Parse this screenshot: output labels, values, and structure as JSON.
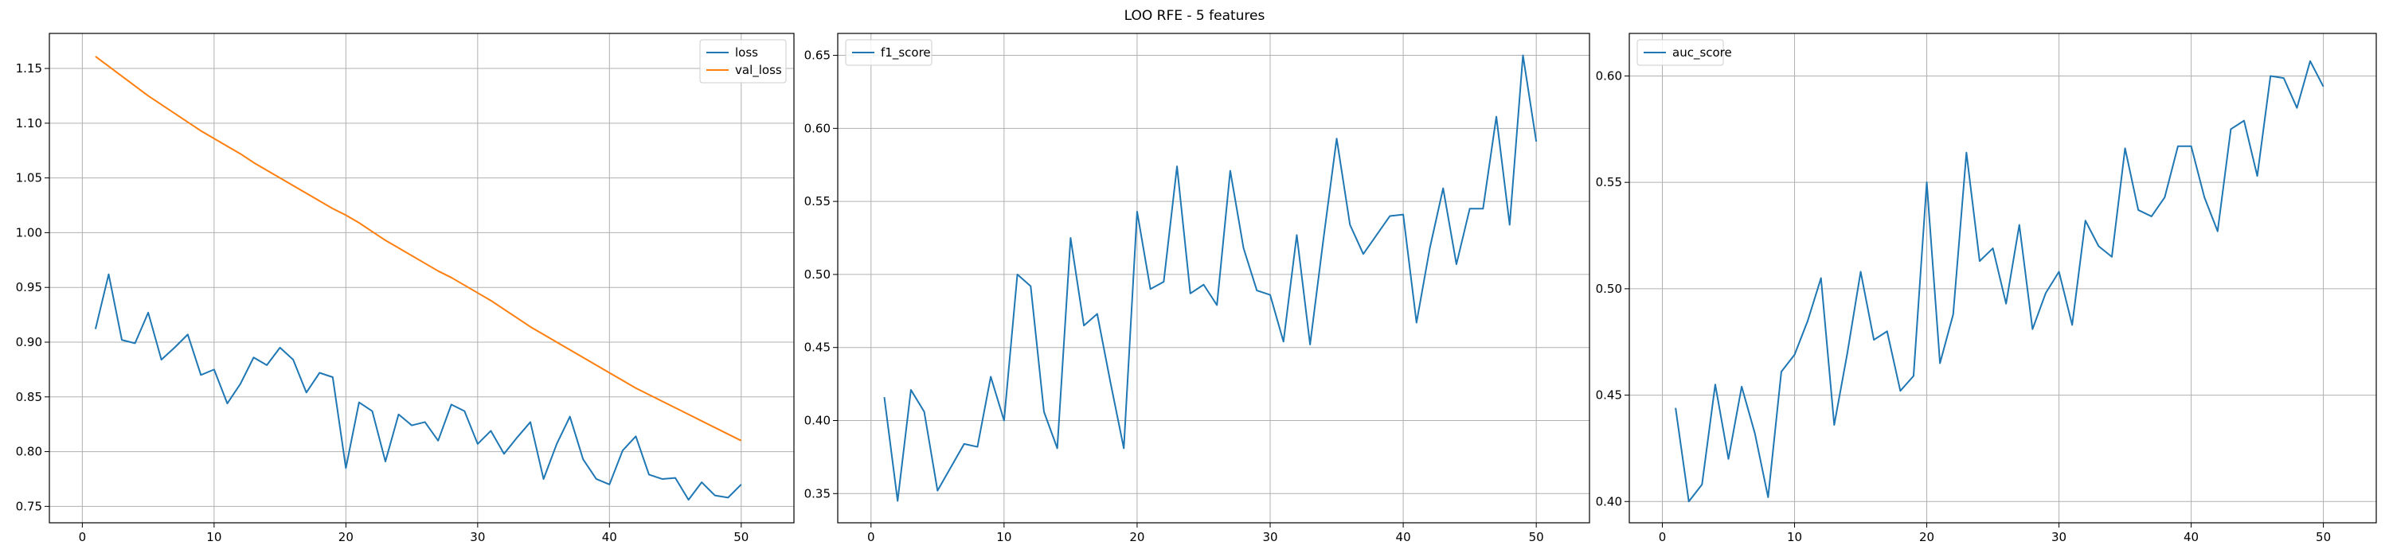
{
  "figure": {
    "title": "LOO RFE - 5 features"
  },
  "colors": {
    "series1": "#1f77b4",
    "series2": "#ff7f0e",
    "grid": "#b0b0b0",
    "legend_border": "#cccccc"
  },
  "chart_data": [
    {
      "type": "line",
      "title": "",
      "xlabel": "",
      "ylabel": "",
      "xlim": [
        -2.5,
        54
      ],
      "ylim": [
        0.735,
        1.182
      ],
      "xticks": [
        0,
        10,
        20,
        30,
        40,
        50
      ],
      "yticks": [
        0.75,
        0.8,
        0.85,
        0.9,
        0.95,
        1.0,
        1.05,
        1.1,
        1.15
      ],
      "ytick_labels": [
        "0.75",
        "0.80",
        "0.85",
        "0.90",
        "0.95",
        "1.00",
        "1.05",
        "1.10",
        "1.15"
      ],
      "grid": true,
      "legend_position": "upper right",
      "x": [
        1,
        2,
        3,
        4,
        5,
        6,
        7,
        8,
        9,
        10,
        11,
        12,
        13,
        14,
        15,
        16,
        17,
        18,
        19,
        20,
        21,
        22,
        23,
        24,
        25,
        26,
        27,
        28,
        29,
        30,
        31,
        32,
        33,
        34,
        35,
        36,
        37,
        38,
        39,
        40,
        41,
        42,
        43,
        44,
        45,
        46,
        47,
        48,
        49,
        50
      ],
      "series": [
        {
          "name": "loss",
          "color": "#1f77b4",
          "values": [
            0.912,
            0.962,
            0.902,
            0.899,
            0.927,
            0.884,
            0.895,
            0.907,
            0.87,
            0.875,
            0.844,
            0.862,
            0.886,
            0.879,
            0.895,
            0.884,
            0.854,
            0.872,
            0.868,
            0.785,
            0.845,
            0.837,
            0.791,
            0.834,
            0.824,
            0.827,
            0.81,
            0.843,
            0.837,
            0.807,
            0.819,
            0.798,
            0.813,
            0.827,
            0.775,
            0.807,
            0.832,
            0.793,
            0.775,
            0.77,
            0.801,
            0.814,
            0.779,
            0.775,
            0.776,
            0.756,
            0.772,
            0.76,
            0.758,
            0.77
          ]
        },
        {
          "name": "val_loss",
          "color": "#ff7f0e",
          "values": [
            1.161,
            1.152,
            1.143,
            1.134,
            1.125,
            1.117,
            1.109,
            1.101,
            1.093,
            1.086,
            1.079,
            1.072,
            1.064,
            1.057,
            1.05,
            1.043,
            1.036,
            1.029,
            1.022,
            1.016,
            1.009,
            1.001,
            0.993,
            0.986,
            0.979,
            0.972,
            0.965,
            0.959,
            0.952,
            0.945,
            0.938,
            0.93,
            0.922,
            0.914,
            0.907,
            0.9,
            0.893,
            0.886,
            0.879,
            0.872,
            0.865,
            0.858,
            0.852,
            0.846,
            0.84,
            0.834,
            0.828,
            0.822,
            0.816,
            0.81
          ]
        }
      ]
    },
    {
      "type": "line",
      "title": "",
      "xlabel": "",
      "ylabel": "",
      "xlim": [
        -2.5,
        54
      ],
      "ylim": [
        0.33,
        0.665
      ],
      "xticks": [
        0,
        10,
        20,
        30,
        40,
        50
      ],
      "yticks": [
        0.35,
        0.4,
        0.45,
        0.5,
        0.55,
        0.6,
        0.65
      ],
      "ytick_labels": [
        "0.35",
        "0.40",
        "0.45",
        "0.50",
        "0.55",
        "0.60",
        "0.65"
      ],
      "grid": true,
      "legend_position": "upper left",
      "x": [
        1,
        2,
        3,
        4,
        5,
        6,
        7,
        8,
        9,
        10,
        11,
        12,
        13,
        14,
        15,
        16,
        17,
        18,
        19,
        20,
        21,
        22,
        23,
        24,
        25,
        26,
        27,
        28,
        29,
        30,
        31,
        32,
        33,
        34,
        35,
        36,
        37,
        38,
        39,
        40,
        41,
        42,
        43,
        44,
        45,
        46,
        47,
        48,
        49,
        50
      ],
      "series": [
        {
          "name": "f1_score",
          "color": "#1f77b4",
          "values": [
            0.416,
            0.345,
            0.421,
            0.406,
            0.352,
            0.368,
            0.384,
            0.382,
            0.43,
            0.4,
            0.5,
            0.492,
            0.406,
            0.381,
            0.525,
            0.465,
            0.473,
            0.426,
            0.381,
            0.543,
            0.49,
            0.495,
            0.574,
            0.487,
            0.493,
            0.479,
            0.571,
            0.518,
            0.489,
            0.486,
            0.454,
            0.527,
            0.452,
            0.524,
            0.593,
            0.534,
            0.514,
            0.527,
            0.54,
            0.541,
            0.467,
            0.518,
            0.559,
            0.507,
            0.545,
            0.545,
            0.608,
            0.534,
            0.65,
            0.591
          ]
        }
      ]
    },
    {
      "type": "line",
      "title": "",
      "xlabel": "",
      "ylabel": "",
      "xlim": [
        -2.5,
        54
      ],
      "ylim": [
        0.39,
        0.62
      ],
      "xticks": [
        0,
        10,
        20,
        30,
        40,
        50
      ],
      "yticks": [
        0.4,
        0.45,
        0.5,
        0.55,
        0.6
      ],
      "ytick_labels": [
        "0.40",
        "0.45",
        "0.50",
        "0.55",
        "0.60"
      ],
      "grid": true,
      "legend_position": "upper left",
      "x": [
        1,
        2,
        3,
        4,
        5,
        6,
        7,
        8,
        9,
        10,
        11,
        12,
        13,
        14,
        15,
        16,
        17,
        18,
        19,
        20,
        21,
        22,
        23,
        24,
        25,
        26,
        27,
        28,
        29,
        30,
        31,
        32,
        33,
        34,
        35,
        36,
        37,
        38,
        39,
        40,
        41,
        42,
        43,
        44,
        45,
        46,
        47,
        48,
        49,
        50
      ],
      "series": [
        {
          "name": "auc_score",
          "color": "#1f77b4",
          "values": [
            0.444,
            0.4,
            0.408,
            0.455,
            0.42,
            0.454,
            0.432,
            0.402,
            0.461,
            0.469,
            0.485,
            0.505,
            0.436,
            0.47,
            0.508,
            0.476,
            0.48,
            0.452,
            0.459,
            0.55,
            0.465,
            0.488,
            0.564,
            0.513,
            0.519,
            0.493,
            0.53,
            0.481,
            0.498,
            0.508,
            0.483,
            0.532,
            0.52,
            0.515,
            0.566,
            0.537,
            0.534,
            0.543,
            0.567,
            0.567,
            0.543,
            0.527,
            0.575,
            0.579,
            0.553,
            0.6,
            0.599,
            0.585,
            0.607,
            0.595
          ]
        }
      ]
    }
  ]
}
